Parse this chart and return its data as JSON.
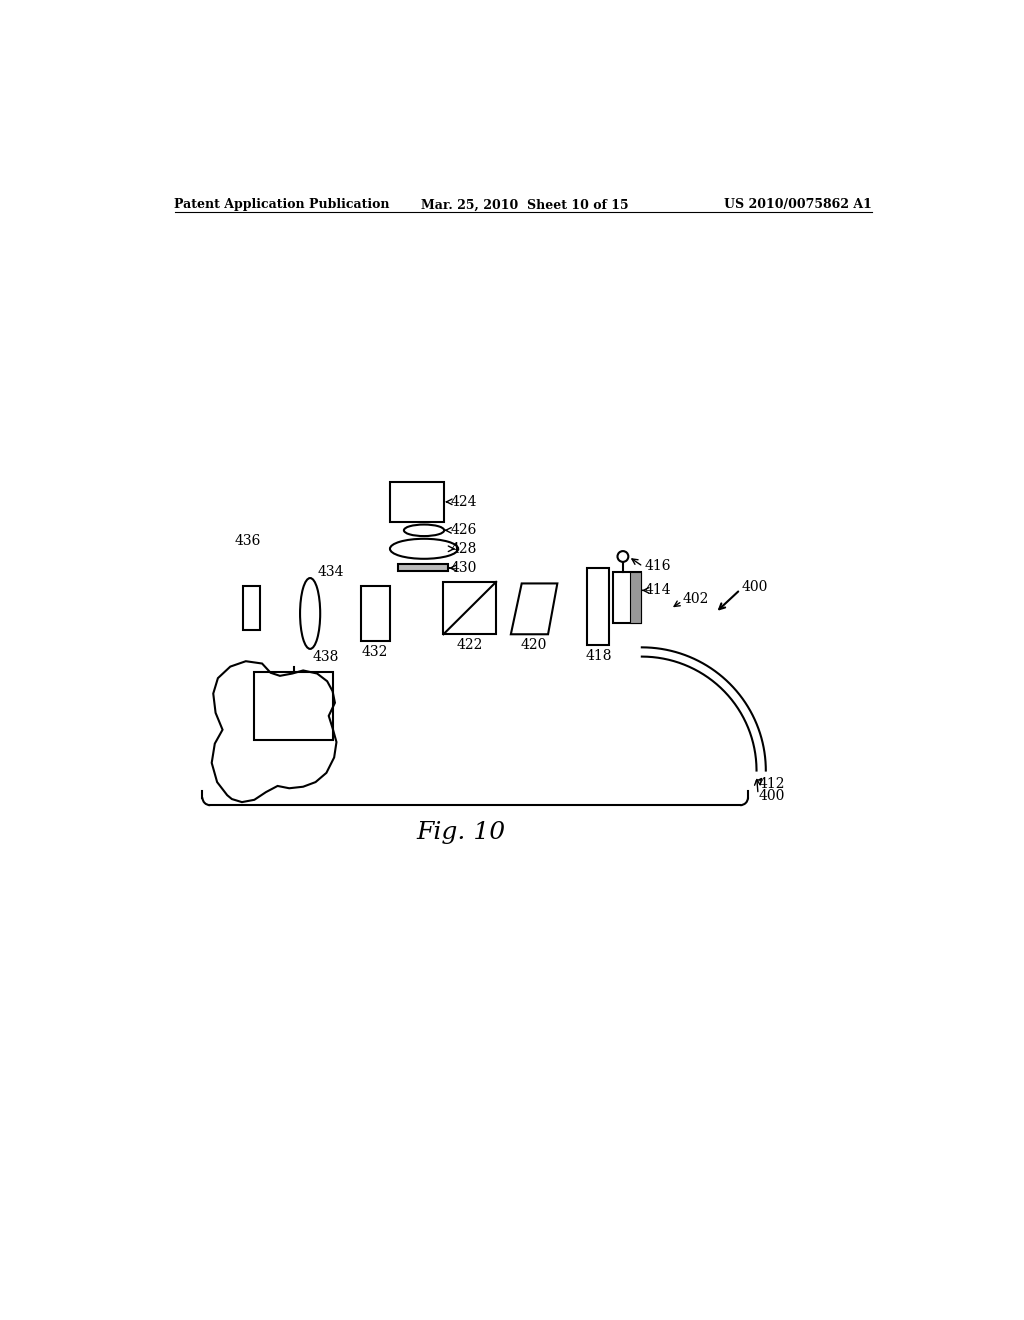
{
  "header_left": "Patent Application Publication",
  "header_mid": "Mar. 25, 2010  Sheet 10 of 15",
  "header_right": "US 2010/0075862 A1",
  "fig_label": "Fig. 10",
  "bg_color": "#ffffff",
  "line_color": "#000000",
  "labels": {
    "400_top": "400",
    "402": "402",
    "412": "412",
    "414": "414",
    "416": "416",
    "418": "418",
    "420": "420",
    "422": "422",
    "424": "424",
    "426": "426",
    "428": "428",
    "430": "430",
    "432": "432",
    "434": "434",
    "436": "436",
    "438": "438",
    "400_bot": "400"
  }
}
